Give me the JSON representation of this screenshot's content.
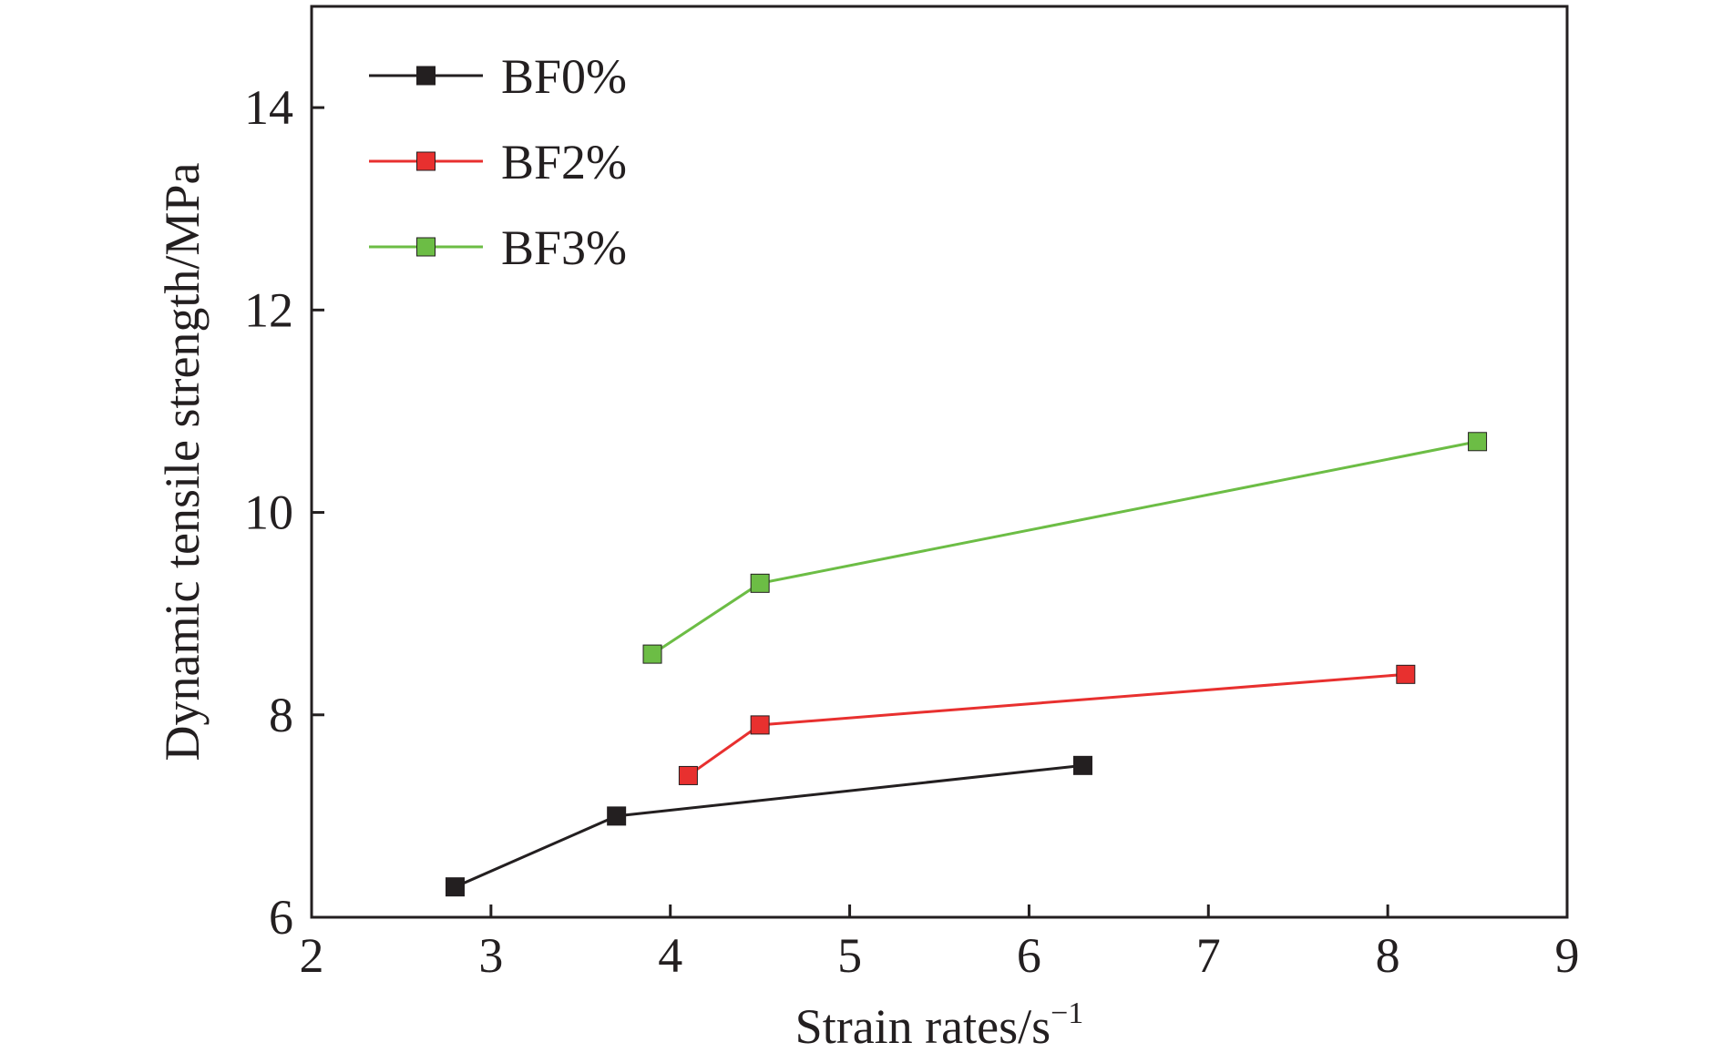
{
  "chart_data": {
    "type": "line",
    "title": "",
    "xlabel": "Strain rates/s",
    "xlabel_superscript": "−1",
    "ylabel": "Dynamic tensile strength/MPa",
    "xlim": [
      2,
      9
    ],
    "ylim": [
      6,
      15
    ],
    "xticks": [
      2,
      3,
      4,
      5,
      6,
      7,
      8,
      9
    ],
    "yticks": [
      6,
      8,
      10,
      12,
      14
    ],
    "grid": false,
    "legend_position": "top-left",
    "marker": "square",
    "series": [
      {
        "name": "BF0%",
        "color": "#231f20",
        "x": [
          2.8,
          3.7,
          6.3
        ],
        "y": [
          6.3,
          7.0,
          7.5
        ]
      },
      {
        "name": "BF2%",
        "color": "#e8302f",
        "x": [
          4.1,
          4.5,
          8.1
        ],
        "y": [
          7.4,
          7.9,
          8.4
        ]
      },
      {
        "name": "BF3%",
        "color": "#6cbd45",
        "x": [
          3.9,
          4.5,
          8.5
        ],
        "y": [
          8.6,
          9.3,
          10.7
        ]
      }
    ]
  }
}
